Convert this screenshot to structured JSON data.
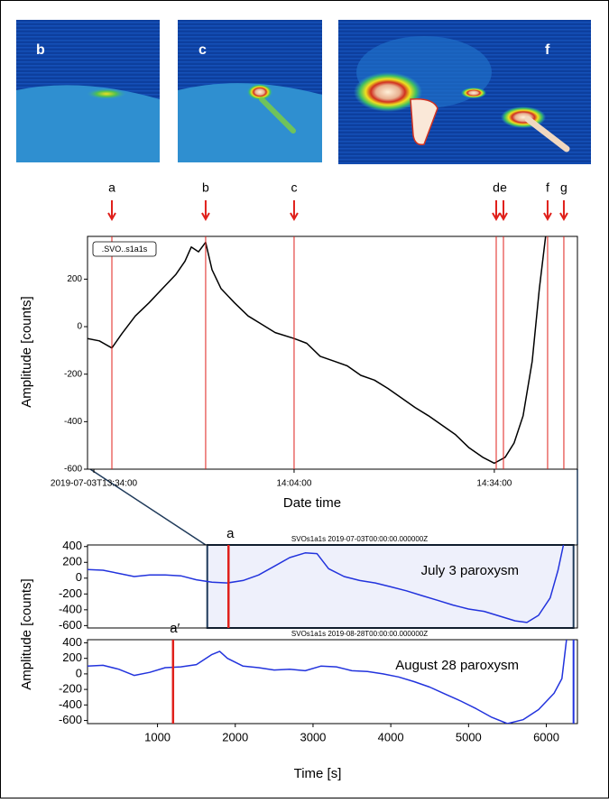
{
  "images": [
    {
      "label": "b"
    },
    {
      "label": "c"
    },
    {
      "label": "f"
    }
  ],
  "shared_ylabel": "Amplitude [counts]",
  "shared_xlabel": "Time [s]",
  "chart_data": [
    {
      "type": "line",
      "xlabel": "Date time",
      "ylabel": "Amplitude [counts]",
      "legend": ".SVO..s1a1s",
      "xlim": [
        "2019-07-03T13:33:03",
        "2019-07-03T14:46:27"
      ],
      "xticks": [
        {
          "value": "2019-07-03T13:34:00",
          "label": "2019-07-03T13:34:00"
        },
        {
          "value": "2019-07-03T14:04:00",
          "label": "14:04:00"
        },
        {
          "value": "2019-07-03T14:34:00",
          "label": "14:34:00"
        }
      ],
      "ylim": [
        -600,
        380
      ],
      "yticks": [
        -600,
        -400,
        -200,
        0,
        200
      ],
      "x": [
        "2019-07-03T13:33:03",
        "2019-07-03T13:34:49",
        "2019-07-03T13:36:42",
        "2019-07-03T13:38:11",
        "2019-07-03T13:40:13",
        "2019-07-03T13:42:15",
        "2019-07-03T13:44:16",
        "2019-07-03T13:46:18",
        "2019-07-03T13:47:39",
        "2019-07-03T13:48:36",
        "2019-07-03T13:49:41",
        "2019-07-03T13:50:45",
        "2019-07-03T13:51:42",
        "2019-07-03T13:53:03",
        "2019-07-03T13:55:05",
        "2019-07-03T13:57:07",
        "2019-07-03T13:59:08",
        "2019-07-03T14:01:10",
        "2019-07-03T14:04:00",
        "2019-07-03T14:05:54",
        "2019-07-03T14:07:55",
        "2019-07-03T14:09:57",
        "2019-07-03T14:11:58",
        "2019-07-03T14:14:00",
        "2019-07-03T14:16:02",
        "2019-07-03T14:18:03",
        "2019-07-03T14:20:05",
        "2019-07-03T14:22:07",
        "2019-07-03T14:24:08",
        "2019-07-03T14:26:10",
        "2019-07-03T14:28:11",
        "2019-07-03T14:30:13",
        "2019-07-03T14:32:15",
        "2019-07-03T14:34:00",
        "2019-07-03T14:35:37",
        "2019-07-03T14:36:58",
        "2019-07-03T14:38:19",
        "2019-07-03T14:39:41",
        "2019-07-03T14:40:45",
        "2019-07-03T14:41:42"
      ],
      "series": [
        {
          "color": "#000000",
          "values": [
            -50,
            -60,
            -90,
            -30,
            45,
            100,
            160,
            220,
            275,
            335,
            315,
            355,
            240,
            160,
            100,
            45,
            10,
            -25,
            -50,
            -70,
            -125,
            -145,
            -165,
            -205,
            -225,
            -260,
            -300,
            -340,
            -375,
            -415,
            -455,
            -510,
            -550,
            -575,
            -550,
            -490,
            -375,
            -145,
            160,
            385
          ]
        }
      ],
      "events": [
        {
          "label": "a",
          "x": "2019-07-03T13:36:42"
        },
        {
          "label": "b",
          "x": "2019-07-03T13:50:45"
        },
        {
          "label": "c",
          "x": "2019-07-03T14:04:00"
        },
        {
          "label": "d",
          "x": "2019-07-03T14:34:17"
        },
        {
          "label": "e",
          "x": "2019-07-03T14:35:22"
        },
        {
          "label": "f",
          "x": "2019-07-03T14:41:59"
        },
        {
          "label": "g",
          "x": "2019-07-03T14:44:25"
        }
      ],
      "event_color": "#e0201b"
    },
    {
      "type": "line",
      "title": "SVOs1a1s 2019-07-03T00:00:00.000000Z",
      "annotation": "July 3 paroxysm",
      "xlim": [
        100,
        6400
      ],
      "ylim": [
        -630,
        420
      ],
      "yticks": [
        -600,
        -400,
        -200,
        0,
        200,
        400
      ],
      "x": [
        100,
        300,
        500,
        700,
        900,
        1100,
        1300,
        1500,
        1700,
        1900,
        2100,
        2300,
        2500,
        2700,
        2900,
        3050,
        3200,
        3400,
        3600,
        3800,
        4000,
        4200,
        4400,
        4600,
        4800,
        5000,
        5200,
        5400,
        5600,
        5750,
        5900,
        6050,
        6150,
        6220
      ],
      "series": [
        {
          "color": "#2233dd",
          "values": [
            110,
            100,
            60,
            20,
            40,
            40,
            30,
            -20,
            -50,
            -60,
            -30,
            40,
            150,
            260,
            320,
            310,
            120,
            20,
            -30,
            -60,
            -110,
            -160,
            -220,
            -280,
            -340,
            -390,
            -420,
            -480,
            -540,
            -560,
            -470,
            -250,
            100,
            420
          ]
        }
      ],
      "events": [
        {
          "label": "a",
          "x": 1913
        }
      ],
      "event_color": "#e0201b",
      "highlight": [
        1640,
        6350
      ]
    },
    {
      "type": "line",
      "title": "SVOs1a1s 2019-08-28T00:00:00.000000Z",
      "annotation": "August 28 paroxysm",
      "xlim": [
        100,
        6400
      ],
      "ylim": [
        -640,
        440
      ],
      "yticks": [
        -600,
        -400,
        -200,
        0,
        200,
        400
      ],
      "xticks": [
        1000,
        2000,
        3000,
        4000,
        5000,
        6000
      ],
      "x": [
        100,
        300,
        500,
        700,
        900,
        1100,
        1300,
        1500,
        1700,
        1800,
        1900,
        2100,
        2300,
        2500,
        2700,
        2900,
        3100,
        3300,
        3500,
        3700,
        3900,
        4100,
        4300,
        4500,
        4700,
        4900,
        5100,
        5300,
        5500,
        5700,
        5900,
        6100,
        6200,
        6260
      ],
      "series": [
        {
          "color": "#2233dd",
          "values": [
            100,
            110,
            60,
            -20,
            20,
            80,
            90,
            120,
            250,
            290,
            200,
            100,
            80,
            50,
            60,
            40,
            100,
            90,
            40,
            30,
            0,
            -40,
            -100,
            -170,
            -260,
            -350,
            -450,
            -560,
            -640,
            -590,
            -460,
            -250,
            -60,
            440
          ]
        }
      ],
      "events": [
        {
          "label": "a′",
          "x": 1200
        }
      ],
      "event_color": "#e0201b",
      "end_line": 6350
    }
  ]
}
